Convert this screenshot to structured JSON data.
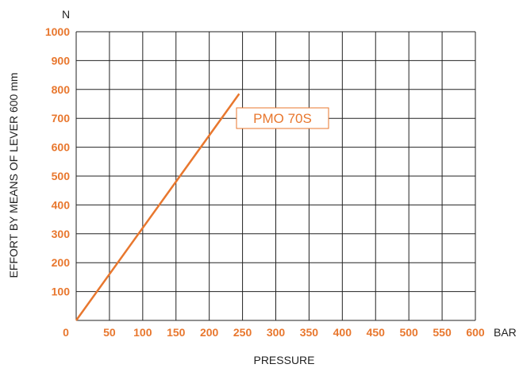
{
  "colors": {
    "accent": "#e8772e",
    "grid": "#222222",
    "text": "#222222"
  },
  "chart_data": {
    "type": "line",
    "xlabel": "PRESSURE",
    "x_unit": "BAR",
    "ylabel": "EFFORT BY MEANS OF LEVER 600 mm",
    "y_unit": "N",
    "xlim": [
      0,
      600
    ],
    "ylim": [
      0,
      1000
    ],
    "x_ticks": [
      "0",
      "50",
      "100",
      "150",
      "200",
      "250",
      "300",
      "350",
      "400",
      "450",
      "500",
      "550",
      "600"
    ],
    "y_ticks": [
      "0",
      "100",
      "200",
      "300",
      "400",
      "500",
      "600",
      "700",
      "800",
      "900",
      "1000"
    ],
    "grid": true,
    "series": [
      {
        "name": "PMO 70S",
        "x": [
          0,
          245
        ],
        "y": [
          0,
          785
        ]
      }
    ]
  }
}
